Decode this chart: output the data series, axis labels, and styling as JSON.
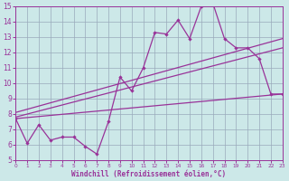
{
  "xlabel": "Windchill (Refroidissement éolien,°C)",
  "xlim": [
    0,
    23
  ],
  "ylim": [
    5,
    15
  ],
  "xticks": [
    0,
    1,
    2,
    3,
    4,
    5,
    6,
    7,
    8,
    9,
    10,
    11,
    12,
    13,
    14,
    15,
    16,
    17,
    18,
    19,
    20,
    21,
    22,
    23
  ],
  "yticks": [
    5,
    6,
    7,
    8,
    9,
    10,
    11,
    12,
    13,
    14,
    15
  ],
  "bg_color": "#cce8e8",
  "line_color": "#993399",
  "grid_color": "#99aabb",
  "data_x": [
    0,
    1,
    2,
    3,
    4,
    5,
    6,
    7,
    8,
    9,
    10,
    11,
    12,
    13,
    14,
    15,
    16,
    17,
    18,
    19,
    20,
    21,
    22,
    23
  ],
  "data_y": [
    7.7,
    6.1,
    7.3,
    6.3,
    6.5,
    6.5,
    5.9,
    5.4,
    7.5,
    10.4,
    9.5,
    11.0,
    13.3,
    13.2,
    14.1,
    12.9,
    15.0,
    15.2,
    12.9,
    12.3,
    12.3,
    11.6,
    9.3,
    9.3
  ],
  "trend1_x": [
    0,
    23
  ],
  "trend1_y": [
    7.7,
    9.3
  ],
  "trend2_x": [
    0,
    23
  ],
  "trend2_y": [
    7.8,
    12.3
  ],
  "trend3_x": [
    0,
    23
  ],
  "trend3_y": [
    8.1,
    12.9
  ]
}
